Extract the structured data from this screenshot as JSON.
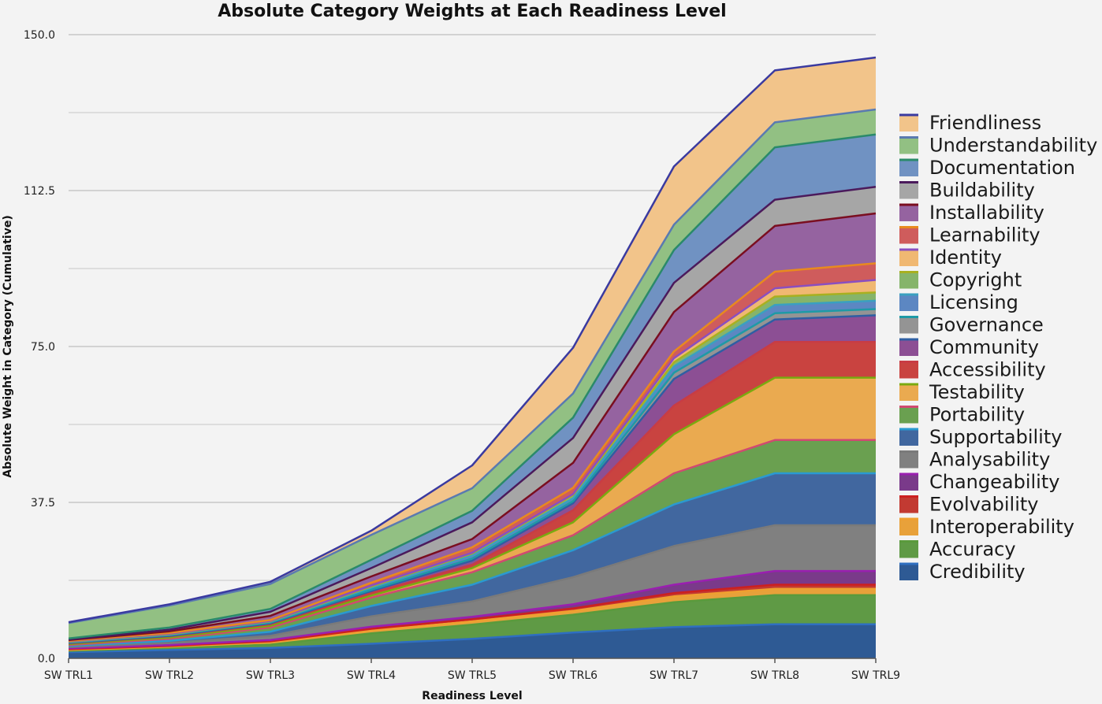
{
  "chart_data": {
    "type": "area",
    "stacked": true,
    "title": "Absolute Category Weights at Each Readiness Level",
    "xlabel": "Readiness Level",
    "ylabel": "Absolute Weight in Category (Cumulative)",
    "ylim": [
      0,
      150
    ],
    "yticks": [
      "0.0",
      "37.5",
      "75.0",
      "112.5",
      "150.0"
    ],
    "grid": true,
    "legend_position": "right",
    "categories": [
      "SW TRL1",
      "SW TRL2",
      "SW TRL3",
      "SW TRL4",
      "SW TRL5",
      "SW TRL6",
      "SW TRL7",
      "SW TRL8",
      "SW TRL9"
    ],
    "series": [
      {
        "name": "Credibility",
        "color": "#2e5a94",
        "line": "#2f6fc0",
        "values": [
          1.5,
          2.0,
          2.5,
          3.5,
          4.7,
          6.2,
          7.5,
          8.2,
          8.2
        ]
      },
      {
        "name": "Accuracy",
        "color": "#5f9a45",
        "line": "#5a9a3c",
        "values": [
          0.3,
          0.5,
          0.8,
          2.5,
          3.4,
          4.3,
          6.0,
          7.0,
          7.0
        ]
      },
      {
        "name": "Interoperability",
        "color": "#e8a13a",
        "line": "#f0a030",
        "values": [
          0.2,
          0.3,
          0.5,
          0.7,
          0.8,
          0.9,
          1.4,
          1.5,
          1.5
        ]
      },
      {
        "name": "Evolvability",
        "color": "#c23a32",
        "line": "#cc2020",
        "values": [
          0.2,
          0.2,
          0.3,
          0.4,
          0.5,
          0.6,
          0.8,
          1.0,
          1.0
        ]
      },
      {
        "name": "Changeability",
        "color": "#7a3a8a",
        "line": "#9a1fb0",
        "values": [
          0.2,
          0.2,
          0.3,
          0.5,
          0.6,
          1.0,
          2.0,
          3.3,
          3.3
        ]
      },
      {
        "name": "Analysability",
        "color": "#808080",
        "line": "#7a7a7a",
        "values": [
          0.3,
          0.5,
          1.0,
          2.5,
          3.7,
          6.5,
          9.3,
          11.0,
          11.0
        ]
      },
      {
        "name": "Supportability",
        "color": "#41679f",
        "line": "#2a9ad0",
        "values": [
          0.3,
          0.5,
          1.0,
          2.5,
          4.0,
          6.5,
          10.0,
          12.5,
          12.5
        ]
      },
      {
        "name": "Portability",
        "color": "#6aa050",
        "line": "#d04a70",
        "values": [
          0.2,
          0.5,
          1.0,
          2.0,
          3.0,
          3.6,
          7.5,
          8.0,
          8.0
        ]
      },
      {
        "name": "Testability",
        "color": "#eaaa50",
        "line": "#7aaa10",
        "values": [
          0.2,
          0.3,
          0.4,
          0.5,
          1.0,
          3.1,
          9.4,
          15.0,
          15.0
        ]
      },
      {
        "name": "Accessibility",
        "color": "#c94340",
        "line": "#c83c44",
        "values": [
          0.2,
          0.3,
          0.4,
          0.6,
          0.8,
          2.9,
          6.9,
          8.6,
          8.6
        ]
      },
      {
        "name": "Community",
        "color": "#8c4f94",
        "line": "#2e5fa3",
        "values": [
          0.1,
          0.1,
          0.2,
          0.5,
          1.0,
          1.7,
          6.4,
          5.4,
          6.4
        ]
      },
      {
        "name": "Governance",
        "color": "#949494",
        "line": "#1e9aa6",
        "values": [
          0.1,
          0.2,
          0.2,
          0.3,
          0.5,
          0.5,
          1.5,
          1.5,
          1.5
        ]
      },
      {
        "name": "Licensing",
        "color": "#5c87c2",
        "line": "#3aa0c0",
        "values": [
          0.1,
          0.1,
          0.2,
          0.5,
          0.8,
          0.7,
          1.5,
          2.0,
          2.0
        ]
      },
      {
        "name": "Copyright",
        "color": "#86b46a",
        "line": "#a8b020",
        "values": [
          0.1,
          0.1,
          0.1,
          0.3,
          0.4,
          0.8,
          1.0,
          2.0,
          2.0
        ]
      },
      {
        "name": "Identity",
        "color": "#f0b872",
        "line": "#8a4fc0",
        "values": [
          0.1,
          0.1,
          0.1,
          0.2,
          0.2,
          0.2,
          1.0,
          2.0,
          3.0
        ]
      },
      {
        "name": "Learnability",
        "color": "#cf5c5c",
        "line": "#e88a1e",
        "values": [
          0.1,
          0.2,
          0.2,
          0.7,
          1.3,
          1.5,
          1.6,
          4.0,
          4.0
        ]
      },
      {
        "name": "Installability",
        "color": "#9563a0",
        "line": "#7a0e20",
        "values": [
          0.2,
          0.4,
          1.0,
          1.5,
          2.0,
          6.0,
          9.5,
          11.0,
          12.0
        ]
      },
      {
        "name": "Buildability",
        "color": "#a6a6a6",
        "line": "#4b1a5c",
        "values": [
          0.1,
          0.4,
          1.0,
          2.0,
          4.0,
          6.0,
          7.0,
          6.3,
          6.4
        ]
      },
      {
        "name": "Documentation",
        "color": "#7092c2",
        "line": "#2a8a6a",
        "values": [
          0.3,
          0.5,
          0.7,
          2.0,
          2.8,
          4.9,
          7.9,
          12.6,
          12.6
        ]
      },
      {
        "name": "Understandability",
        "color": "#92c083",
        "line": "#5a7ab0",
        "values": [
          3.7,
          5.3,
          6.0,
          6.0,
          5.4,
          5.8,
          6.1,
          6.0,
          6.0
        ]
      },
      {
        "name": "Friendliness",
        "color": "#f2c48a",
        "line": "#3a3aa0",
        "values": [
          0.2,
          0.3,
          0.5,
          1.0,
          5.5,
          11.0,
          14.0,
          12.5,
          12.5
        ]
      }
    ]
  }
}
